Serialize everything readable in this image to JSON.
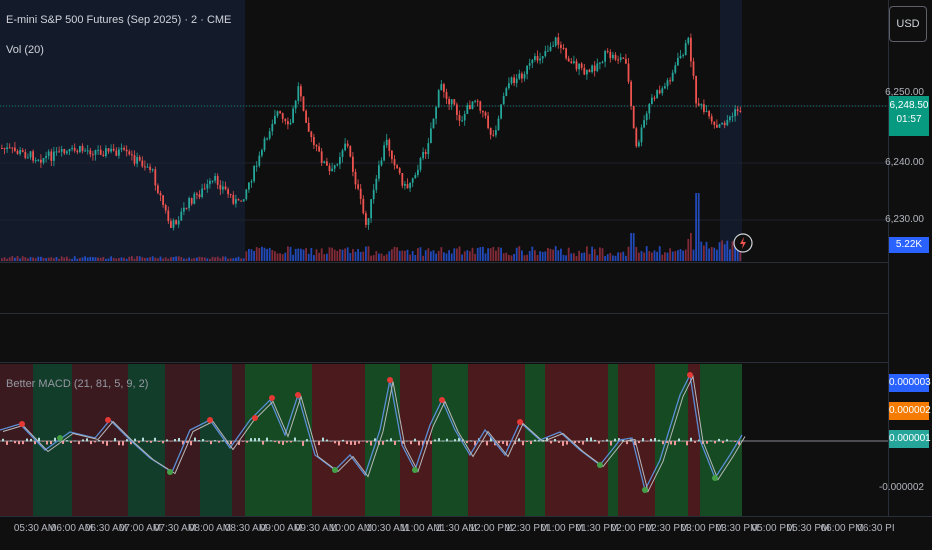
{
  "header": {
    "symbol_title": "E-mini S&P 500 Futures (Sep 2025) · 2 · CME",
    "volume_label": "Vol (20)",
    "currency_button": "USD"
  },
  "price_axis": {
    "labels": [
      "6,250.00",
      "6,240.00",
      "6,230.00"
    ],
    "current_price": "6,248.50",
    "countdown": "01:57",
    "volume_tag": "5.22K",
    "colors": {
      "price_tag": "#089981",
      "volume_tag": "#2962ff"
    }
  },
  "indicator": {
    "label": "Better MACD (21, 81, 5, 9, 2)",
    "axis_labels": [
      "0.000003",
      "0.000002",
      "0.000001",
      "-0.000002"
    ],
    "colors": {
      "tag1": "#2962ff",
      "tag2": "#f57c00",
      "tag3": "#26a69a"
    }
  },
  "time_axis": {
    "labels": [
      "05:30 AM",
      "06:00 AM",
      "06:30 AM",
      "07:00 AM",
      "07:30 AM",
      "08:00 AM",
      "08:30 AM",
      "09:00 AM",
      "09:30 AM",
      "10:00 AM",
      "10:30 AM",
      "11:00 AM",
      "11:30 AM",
      "12:00 PM",
      "12:30 PM",
      "01:00 PM",
      "01:30 PM",
      "02:00 PM",
      "02:30 PM",
      "03:00 PM",
      "03:30 PM",
      "05:00 PM",
      "05:30 PM",
      "06:00 PM",
      "06:30 PI"
    ]
  },
  "icons": {
    "replay": "lightning-icon"
  },
  "theme": {
    "up": "#26a69a",
    "down": "#ef5350",
    "session_shade": "#131a2a"
  }
}
